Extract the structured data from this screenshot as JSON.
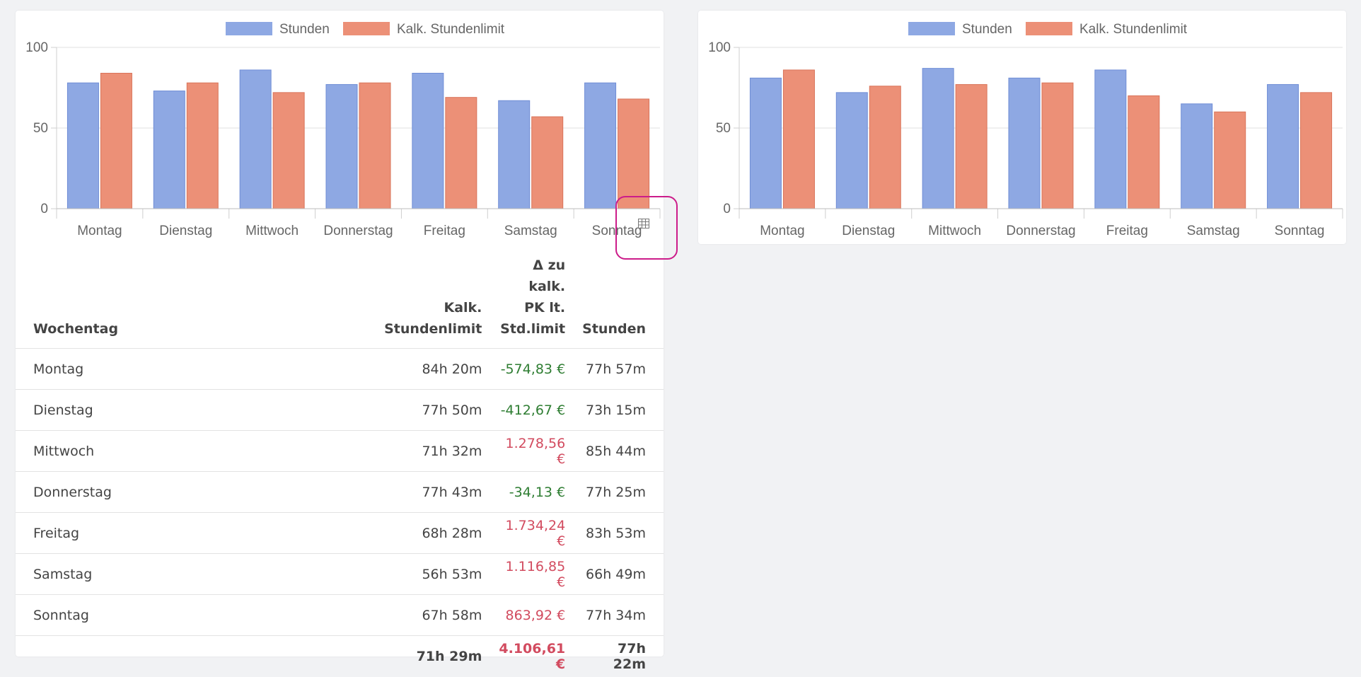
{
  "colors": {
    "stunden": "#8ea8e3",
    "limit": "#ec9077",
    "positive_delta": "#d24b5f",
    "negative_delta": "#2e7d32",
    "highlight_border": "#cc1c8a"
  },
  "chart_data": [
    {
      "type": "bar",
      "categories": [
        "Montag",
        "Dienstag",
        "Mittwoch",
        "Donnerstag",
        "Freitag",
        "Samstag",
        "Sonntag"
      ],
      "series": [
        {
          "name": "Stunden",
          "values": [
            78,
            73,
            86,
            77,
            84,
            67,
            78
          ]
        },
        {
          "name": "Kalk. Stundenlimit",
          "values": [
            84,
            78,
            72,
            78,
            69,
            57,
            68
          ]
        }
      ],
      "yticks": [
        0,
        50,
        100
      ],
      "ylim": [
        0,
        100
      ],
      "legend_position": "top",
      "grid": true
    },
    {
      "type": "bar",
      "categories": [
        "Montag",
        "Dienstag",
        "Mittwoch",
        "Donnerstag",
        "Freitag",
        "Samstag",
        "Sonntag"
      ],
      "series": [
        {
          "name": "Stunden",
          "values": [
            81,
            72,
            87,
            81,
            86,
            65,
            77
          ]
        },
        {
          "name": "Kalk. Stundenlimit",
          "values": [
            86,
            76,
            77,
            78,
            70,
            60,
            72
          ]
        }
      ],
      "yticks": [
        0,
        50,
        100
      ],
      "ylim": [
        0,
        100
      ],
      "legend_position": "top",
      "grid": true
    }
  ],
  "table_toggle_icon": "table-icon",
  "table": {
    "headers": {
      "wochentag": "Wochentag",
      "limit_l1": "Kalk.",
      "limit_l2": "Stundenlimit",
      "delta_l1": "Δ zu kalk.",
      "delta_l2": "PK lt.",
      "delta_l3": "Std.limit",
      "stunden": "Stunden"
    },
    "rows": [
      {
        "day": "Montag",
        "limit": "84h 20m",
        "delta": "-574,83 €",
        "stunden": "77h 57m"
      },
      {
        "day": "Dienstag",
        "limit": "77h 50m",
        "delta": "-412,67 €",
        "stunden": "73h 15m"
      },
      {
        "day": "Mittwoch",
        "limit": "71h 32m",
        "delta": "1.278,56 €",
        "stunden": "85h 44m"
      },
      {
        "day": "Donnerstag",
        "limit": "77h 43m",
        "delta": "-34,13 €",
        "stunden": "77h 25m"
      },
      {
        "day": "Freitag",
        "limit": "68h 28m",
        "delta": "1.734,24 €",
        "stunden": "83h 53m"
      },
      {
        "day": "Samstag",
        "limit": "56h 53m",
        "delta": "1.116,85 €",
        "stunden": "66h 49m"
      },
      {
        "day": "Sonntag",
        "limit": "67h 58m",
        "delta": "863,92 €",
        "stunden": "77h 34m"
      }
    ],
    "total": {
      "day": "",
      "limit": "71h 29m",
      "delta": "4.106,61 €",
      "stunden": "77h 22m"
    }
  }
}
